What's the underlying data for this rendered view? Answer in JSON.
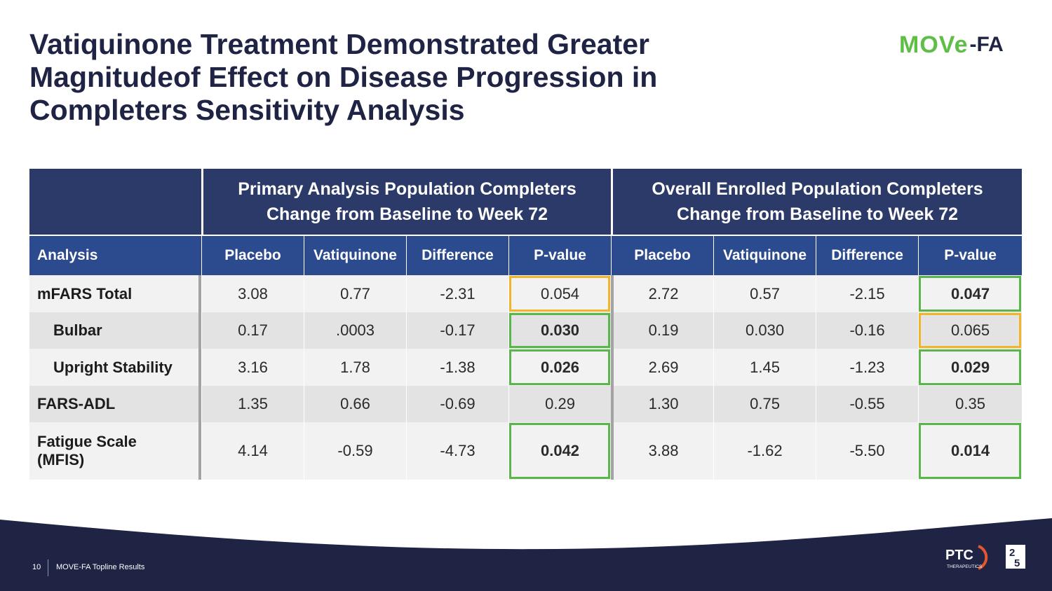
{
  "slide": {
    "title_lines": [
      "Vatiquinone Treatment Demonstrated Greater",
      "Magnitudeof Effect on Disease Progression in",
      "Completers Sensitivity Analysis"
    ]
  },
  "logo": {
    "move": "MOVe",
    "fa": "-FA"
  },
  "table": {
    "group_headers": [
      {
        "line1": "Primary Analysis Population Completers",
        "line2": "Change from Baseline to Week 72"
      },
      {
        "line1": "Overall Enrolled Population Completers",
        "line2": "Change from Baseline to Week 72"
      }
    ],
    "columns": [
      "Analysis",
      "Placebo",
      "Vatiquinone",
      "Difference",
      "P-value",
      "Placebo",
      "Vatiquinone",
      "Difference",
      "P-value"
    ],
    "rows": [
      {
        "label": "mFARS Total",
        "cells": [
          "3.08",
          "0.77",
          "-2.31",
          "0.054",
          "2.72",
          "0.57",
          "-2.15",
          "0.047"
        ]
      },
      {
        "label": "Bulbar",
        "cells": [
          "0.17",
          ".0003",
          "-0.17",
          "0.030",
          "0.19",
          "0.030",
          "-0.16",
          "0.065"
        ]
      },
      {
        "label": "Upright Stability",
        "cells": [
          "3.16",
          "1.78",
          "-1.38",
          "0.026",
          "2.69",
          "1.45",
          "-1.23",
          "0.029"
        ]
      },
      {
        "label": "FARS-ADL",
        "cells": [
          "1.35",
          "0.66",
          "-0.69",
          "0.29",
          "1.30",
          "0.75",
          "-0.55",
          "0.35"
        ]
      },
      {
        "label_line1": "Fatigue Scale",
        "label_line2": "(MFIS)",
        "cells": [
          "4.14",
          "-0.59",
          "-4.73",
          "0.042",
          "3.88",
          "-1.62",
          "-5.50",
          "0.014"
        ]
      }
    ]
  },
  "footer": {
    "page_number": "10",
    "text": "MOVE-FA Topline Results",
    "company_logo": {
      "name": "PTC",
      "sub": "THERAPEUTICS",
      "years_top": "2",
      "years_bottom": "5"
    }
  },
  "colors": {
    "header_dark": "#2c3a69",
    "header_blue": "#2c4a8e",
    "significant": "#5ab54a",
    "borderline": "#f2b52a",
    "footer_navy": "#1f2344"
  }
}
